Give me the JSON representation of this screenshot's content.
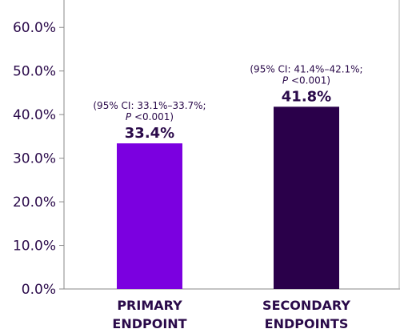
{
  "chart_data": {
    "type": "bar",
    "categories": [
      "PRIMARY ENDPOINT",
      "SECONDARY ENDPOINTS"
    ],
    "category_lines": [
      [
        "PRIMARY",
        "ENDPOINT"
      ],
      [
        "SECONDARY",
        "ENDPOINTS"
      ]
    ],
    "values": [
      33.4,
      41.8
    ],
    "value_labels": [
      "33.4%",
      "41.8%"
    ],
    "ci_annotations": [
      {
        "line1": "(95% CI: 33.1%–33.7%;",
        "p_prefix": "P",
        "p_rest": " <0.001)"
      },
      {
        "line1": "(95% CI: 41.4%–42.1%;",
        "p_prefix": "P",
        "p_rest": " <0.001)"
      }
    ],
    "bar_colors": [
      "#7b00e0",
      "#2a004a"
    ],
    "ylim": [
      0,
      65
    ],
    "yticks": [
      0,
      10,
      20,
      30,
      40,
      50,
      60
    ],
    "ytick_labels": [
      "0.0%",
      "10.0%",
      "20.0%",
      "30.0%",
      "40.0%",
      "50.0%",
      "60.0%"
    ],
    "grid": false,
    "legend": "none",
    "title": "",
    "xlabel": "",
    "ylabel": ""
  },
  "colors": {
    "axis": "#8a8a8a",
    "text": "#2a0a4a"
  }
}
